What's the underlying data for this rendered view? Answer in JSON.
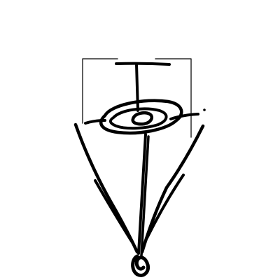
{
  "drawing": {
    "description_visible_text": "",
    "colors": {
      "background": "#ffffff",
      "ink": "#000000",
      "frame": "#2b2b2b"
    },
    "parts": [
      "frame-bracket",
      "t-crossbar",
      "spiral-disc",
      "center-post",
      "left-leg",
      "right-leg",
      "base-knot"
    ]
  }
}
